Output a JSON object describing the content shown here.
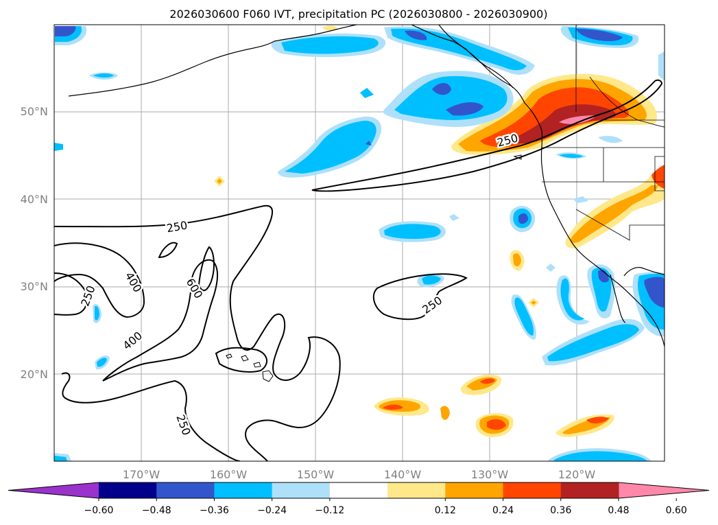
{
  "title": "2026030600 F060 IVT, precipitation PC (2026030800 - 2026030900)",
  "map": {
    "lon_range": [
      -180,
      -110
    ],
    "lat_range": [
      10,
      60
    ],
    "lat_ticks": [
      {
        "value": 20,
        "label": "20°N"
      },
      {
        "value": 30,
        "label": "30°N"
      },
      {
        "value": 40,
        "label": "40°N"
      },
      {
        "value": 50,
        "label": "50°N"
      }
    ],
    "lon_ticks": [
      {
        "value": -170,
        "label": "170°W"
      },
      {
        "value": -160,
        "label": "160°W"
      },
      {
        "value": -150,
        "label": "150°W"
      },
      {
        "value": -140,
        "label": "140°W"
      },
      {
        "value": -130,
        "label": "130°W"
      },
      {
        "value": -120,
        "label": "120°W"
      }
    ],
    "gridlines": true,
    "contour_labels": [
      "250",
      "250",
      "250",
      "250",
      "250",
      "400",
      "400",
      "600"
    ]
  },
  "colorbar": {
    "tick_labels": [
      "−0.60",
      "−0.48",
      "−0.36",
      "−0.24",
      "−0.12",
      "0.12",
      "0.24",
      "0.36",
      "0.48",
      "0.60"
    ],
    "colors": [
      "#9933cc",
      "#00008b",
      "#3355cc",
      "#00bfff",
      "#aee0fa",
      "#ffffff",
      "#ffe88a",
      "#ffa500",
      "#ff4500",
      "#b22222",
      "#ff88aa"
    ],
    "extend": "both"
  }
}
